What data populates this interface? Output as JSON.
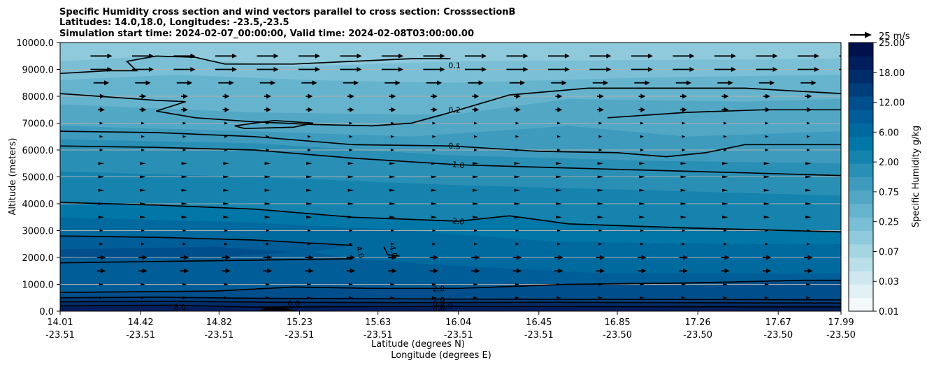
{
  "chart_data": {
    "type": "contour",
    "title_lines": [
      "Specific Humidity cross section and wind vectors parallel to cross section: CrosssectionB",
      "Latitudes: 14.0,18.0, Longitudes: -23.5,-23.5",
      "Simulation start time: 2024-02-07_00:00:00, Valid time: 2024-02-08T03:00:00.00"
    ],
    "ylabel": "Altitude (meters)",
    "xlabel_lines": [
      "Latitude (degrees N)",
      "Longitude (degrees E)"
    ],
    "ylim": [
      0,
      10000
    ],
    "yticks": [
      "0.0",
      "1000.0",
      "2000.0",
      "3000.0",
      "4000.0",
      "5000.0",
      "6000.0",
      "7000.0",
      "8000.0",
      "9000.0",
      "10000.0"
    ],
    "grid": "horizontal",
    "x_lat": [
      "14.01",
      "14.42",
      "14.82",
      "15.23",
      "15.63",
      "16.04",
      "16.45",
      "16.85",
      "17.26",
      "17.67",
      "17.99"
    ],
    "x_lon": [
      "-23.51",
      "-23.51",
      "-23.51",
      "-23.51",
      "-23.51",
      "-23.51",
      "-23.51",
      "-23.50",
      "-23.50",
      "-23.50",
      "-23.50"
    ],
    "colorbar": {
      "label": "Specific Humidity g/kg",
      "tick_labels": [
        "0.01",
        "0.03",
        "0.07",
        "0.25",
        "0.75",
        "2.00",
        "6.00",
        "12.00",
        "18.00",
        "25.00"
      ],
      "colors": [
        "#f4fafc",
        "#e2f1f5",
        "#cfe8ef",
        "#badfe9",
        "#a5d5e3",
        "#8fcadc",
        "#7abfd5",
        "#66b3cd",
        "#52a7c5",
        "#3e9bbd",
        "#2a8fb5",
        "#1583ad",
        "#0077a6",
        "#006a9f",
        "#005d97",
        "#004e8b",
        "#003d7b",
        "#002c6a",
        "#001e5c",
        "#00124e"
      ]
    },
    "quiver_key": {
      "label": "25 m/s",
      "speed": 25
    },
    "contour_labels": [
      "0.1",
      "0.2",
      "0.5",
      "1.0",
      "2.0",
      "4.0",
      "4.0",
      "2.0",
      "2.0",
      "6.0",
      "6.0",
      "6.0",
      "8.0",
      "8.0"
    ],
    "contours": [
      {
        "level": "0.1",
        "points": [
          [
            14.01,
            8850
          ],
          [
            14.25,
            8950
          ],
          [
            14.4,
            8950
          ],
          [
            14.35,
            9300
          ],
          [
            14.5,
            9500
          ],
          [
            14.7,
            9450
          ],
          [
            14.85,
            9200
          ],
          [
            15.2,
            9200
          ],
          [
            15.5,
            9300
          ],
          [
            15.8,
            9400
          ],
          [
            16.0,
            9400
          ]
        ]
      },
      {
        "level": "0.2",
        "points": [
          [
            14.01,
            8100
          ],
          [
            14.5,
            7850
          ],
          [
            14.65,
            7800
          ],
          [
            14.5,
            7450
          ],
          [
            14.7,
            7200
          ],
          [
            15.0,
            7050
          ],
          [
            15.3,
            6950
          ],
          [
            15.6,
            6900
          ],
          [
            15.8,
            7000
          ],
          [
            16.0,
            7400
          ],
          [
            16.3,
            8050
          ],
          [
            16.7,
            8300
          ],
          [
            17.5,
            8300
          ],
          [
            17.99,
            8100
          ]
        ]
      },
      {
        "level": "0.2b",
        "points": [
          [
            16.8,
            7200
          ],
          [
            17.2,
            7400
          ],
          [
            17.6,
            7500
          ],
          [
            17.99,
            7500
          ]
        ]
      },
      {
        "level": "0.2c",
        "points": [
          [
            14.9,
            6900
          ],
          [
            15.1,
            7100
          ],
          [
            15.3,
            7000
          ],
          [
            15.2,
            6850
          ],
          [
            14.95,
            6800
          ],
          [
            14.9,
            6900
          ]
        ]
      },
      {
        "level": "0.5",
        "points": [
          [
            14.01,
            6700
          ],
          [
            14.5,
            6650
          ],
          [
            15.0,
            6500
          ],
          [
            15.5,
            6200
          ],
          [
            16.0,
            6150
          ],
          [
            16.45,
            5950
          ],
          [
            16.85,
            5900
          ],
          [
            17.1,
            5750
          ],
          [
            17.3,
            5900
          ],
          [
            17.5,
            6200
          ],
          [
            17.99,
            6200
          ]
        ]
      },
      {
        "level": "1.0",
        "points": [
          [
            14.01,
            6150
          ],
          [
            14.5,
            6100
          ],
          [
            15.0,
            6000
          ],
          [
            15.5,
            5700
          ],
          [
            16.04,
            5450
          ],
          [
            16.5,
            5350
          ],
          [
            17.0,
            5250
          ],
          [
            17.5,
            5150
          ],
          [
            17.99,
            5050
          ]
        ]
      },
      {
        "level": "2.0",
        "points": [
          [
            14.01,
            4050
          ],
          [
            14.5,
            3950
          ],
          [
            15.0,
            3800
          ],
          [
            15.5,
            3500
          ],
          [
            16.04,
            3350
          ],
          [
            16.3,
            3550
          ],
          [
            16.6,
            3250
          ],
          [
            17.2,
            3100
          ],
          [
            17.99,
            2950
          ]
        ]
      },
      {
        "level": "4.0",
        "points": [
          [
            14.01,
            2800
          ],
          [
            14.5,
            2750
          ],
          [
            15.0,
            2650
          ],
          [
            15.5,
            2450
          ]
        ]
      },
      {
        "level": "4.0b",
        "points": [
          [
            15.5,
            1950
          ],
          [
            15.0,
            1900
          ],
          [
            14.5,
            1850
          ],
          [
            14.01,
            1800
          ]
        ]
      },
      {
        "level": "4.0c",
        "points": [
          [
            15.66,
            2400
          ],
          [
            15.68,
            2100
          ],
          [
            15.74,
            2050
          ]
        ]
      },
      {
        "level": "2.0b",
        "points": [
          [
            14.01,
            700
          ],
          [
            14.8,
            750
          ],
          [
            15.2,
            900
          ],
          [
            15.6,
            850
          ],
          [
            16.04,
            850
          ],
          [
            16.6,
            1000
          ],
          [
            17.2,
            1050
          ],
          [
            17.8,
            1150
          ],
          [
            17.99,
            1150
          ]
        ]
      },
      {
        "level": "6.0",
        "points": [
          [
            14.01,
            500
          ],
          [
            14.5,
            520
          ],
          [
            15.0,
            480
          ],
          [
            15.5,
            470
          ],
          [
            16.04,
            450
          ],
          [
            17.0,
            440
          ],
          [
            17.99,
            420
          ]
        ]
      },
      {
        "level": "6.0b",
        "points": [
          [
            14.01,
            350
          ],
          [
            14.6,
            360
          ],
          [
            15.2,
            330
          ],
          [
            15.8,
            320
          ],
          [
            16.5,
            330
          ],
          [
            17.99,
            300
          ]
        ]
      },
      {
        "level": "8.0",
        "points": [
          [
            14.01,
            200
          ],
          [
            14.6,
            220
          ],
          [
            15.0,
            150
          ],
          [
            15.4,
            170
          ],
          [
            16.04,
            180
          ],
          [
            17.0,
            170
          ],
          [
            17.99,
            160
          ]
        ]
      }
    ],
    "terrain_peak": {
      "x": 15.1,
      "height": 180
    }
  }
}
